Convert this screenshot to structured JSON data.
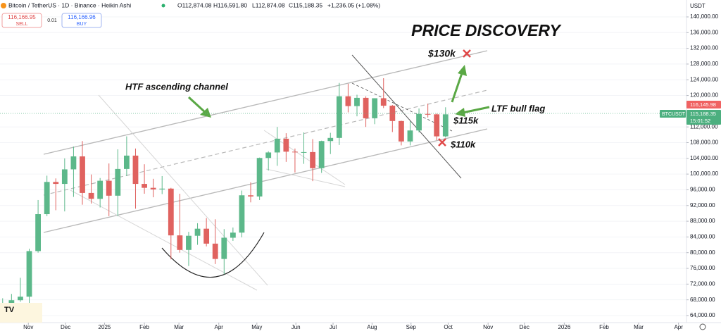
{
  "header": {
    "symbol": "Bitcoin / TetherUS · 1D · Binance · Heikin Ashi",
    "open": "O112,874.08",
    "high": "H116,591.80",
    "low": "L112,874.08",
    "close": "C115,188.35",
    "change": "+1,236.05 (+1.08%)",
    "sell_price": "116,166.95",
    "sell": "SELL",
    "spread": "0.01",
    "buy_price": "116,166.96",
    "buy": "BUY"
  },
  "price_labels": {
    "currency": "USDT",
    "ask": "116,145.98",
    "symbol": "BTCUSDT",
    "last": "115,188.35",
    "countdown": "15:01:52"
  },
  "annotations": {
    "title": "PRICE DISCOVERY",
    "target": "$130k",
    "channel": "HTF ascending channel",
    "flag": "LTF bull flag",
    "level_115": "$115k",
    "level_110": "$110k"
  },
  "chart_data": {
    "type": "candlestick",
    "up_color": "#5cb88a",
    "down_color": "#e0625f",
    "grid": true,
    "open": [
      62800,
      67000,
      67900,
      68800,
      80400,
      89800,
      98000,
      97500,
      101200,
      104500,
      95200,
      93700,
      98300,
      94500,
      101300,
      104700,
      97500,
      96500,
      96100,
      96300,
      84400,
      80700,
      84300,
      86100,
      82300,
      78400,
      83800,
      85100,
      94600,
      94300,
      104100,
      105500,
      109000,
      105700,
      105600,
      105600,
      101500,
      108400,
      109200,
      119800,
      117300,
      119400,
      114200,
      119300,
      117400,
      113500,
      108300,
      111100,
      115300,
      115200,
      109600
    ],
    "high": [
      68400,
      69500,
      73600,
      81000,
      93400,
      99600,
      98900,
      104000,
      107000,
      108400,
      99900,
      99000,
      102700,
      106300,
      109600,
      106500,
      102500,
      98800,
      99500,
      96500,
      95000,
      85300,
      87500,
      88800,
      88500,
      86000,
      86400,
      95800,
      97900,
      104200,
      105800,
      112000,
      110400,
      106500,
      110600,
      108900,
      108500,
      110500,
      123200,
      123000,
      120200,
      119800,
      119300,
      124400,
      117600,
      113600,
      113400,
      116700,
      117900,
      115400,
      117000
    ],
    "low": [
      62500,
      65000,
      67500,
      66800,
      80000,
      89300,
      90800,
      90500,
      94200,
      92200,
      92500,
      91500,
      89300,
      89300,
      99500,
      91200,
      95000,
      94100,
      94900,
      78300,
      80000,
      76600,
      82000,
      81600,
      77100,
      74500,
      83000,
      83900,
      92800,
      93400,
      100900,
      102100,
      103100,
      100400,
      102600,
      98200,
      100300,
      105100,
      107400,
      115700,
      114700,
      112000,
      112700,
      116800,
      110700,
      107300,
      107300,
      110600,
      114400,
      108600,
      109300
    ],
    "close": [
      67000,
      67900,
      68800,
      80400,
      89800,
      98000,
      97500,
      101200,
      104500,
      95200,
      93700,
      98300,
      94500,
      101300,
      104700,
      97500,
      96500,
      96100,
      96300,
      84400,
      80700,
      84300,
      86100,
      82300,
      78400,
      83800,
      85100,
      94600,
      94300,
      104100,
      105500,
      109000,
      105700,
      105600,
      105600,
      101500,
      108400,
      109200,
      119800,
      117300,
      119400,
      114200,
      119300,
      117400,
      113500,
      108300,
      111100,
      115300,
      115200,
      109600,
      115200
    ],
    "ylim": [
      62200,
      144300
    ],
    "yticks": [
      {
        "value": 140000,
        "label": "140,000.00"
      },
      {
        "value": 136000,
        "label": "136,000.00"
      },
      {
        "value": 132000,
        "label": "132,000.00"
      },
      {
        "value": 128000,
        "label": "128,000.00"
      },
      {
        "value": 124000,
        "label": "124,000.00"
      },
      {
        "value": 120000,
        "label": "120,000.00"
      },
      {
        "value": 112000,
        "label": "112,000.00"
      },
      {
        "value": 108000,
        "label": "108,000.00"
      },
      {
        "value": 104000,
        "label": "104,000.00"
      },
      {
        "value": 100000,
        "label": "100,000.00"
      },
      {
        "value": 96000,
        "label": "96,000.00"
      },
      {
        "value": 92000,
        "label": "92,000.00"
      },
      {
        "value": 88000,
        "label": "88,000.00"
      },
      {
        "value": 84000,
        "label": "84,000.00"
      },
      {
        "value": 80000,
        "label": "80,000.00"
      },
      {
        "value": 76000,
        "label": "76,000.00"
      },
      {
        "value": 72000,
        "label": "72,000.00"
      },
      {
        "value": 68000,
        "label": "68,000.00"
      },
      {
        "value": 64000,
        "label": "64,000.00"
      }
    ],
    "xlim": [
      -0.3,
      77.2
    ],
    "xticks": [
      {
        "value": 2.9,
        "label": "Nov"
      },
      {
        "value": 7.1,
        "label": "Dec"
      },
      {
        "value": 11.5,
        "label": "2025"
      },
      {
        "value": 16,
        "label": "Feb"
      },
      {
        "value": 19.9,
        "label": "Mar"
      },
      {
        "value": 24.4,
        "label": "Apr"
      },
      {
        "value": 28.7,
        "label": "May"
      },
      {
        "value": 33.1,
        "label": "Jun"
      },
      {
        "value": 37.3,
        "label": "Jul"
      },
      {
        "value": 41.7,
        "label": "Aug"
      },
      {
        "value": 46.1,
        "label": "Sep"
      },
      {
        "value": 50.3,
        "label": "Oct"
      },
      {
        "value": 54.8,
        "label": "Nov"
      },
      {
        "value": 58.9,
        "label": "Dec"
      },
      {
        "value": 63.4,
        "label": "2026"
      },
      {
        "value": 67.9,
        "label": "Feb"
      },
      {
        "value": 71.8,
        "label": "Mar"
      },
      {
        "value": 76.3,
        "label": "Apr"
      }
    ]
  }
}
